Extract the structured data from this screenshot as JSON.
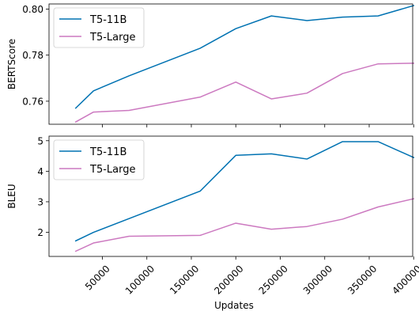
{
  "chart_data": [
    {
      "type": "line",
      "xlabel": "",
      "ylabel": "BERTScore",
      "x": [
        20000,
        40000,
        80000,
        160000,
        200000,
        240000,
        280000,
        320000,
        360000,
        400000
      ],
      "xlim": [
        0,
        400000
      ],
      "ylim": [
        0.75,
        0.8022
      ],
      "yticks": [
        0.76,
        0.78,
        0.8
      ],
      "ytick_labels": [
        "0.76",
        "0.78",
        "0.80"
      ],
      "legend_position": "top-left",
      "grid": false,
      "series": [
        {
          "name": "T5-11B",
          "color": "#0072b2",
          "values": [
            0.757,
            0.7645,
            0.771,
            0.783,
            0.7915,
            0.797,
            0.795,
            0.7965,
            0.797,
            0.8015
          ]
        },
        {
          "name": "T5-Large",
          "color": "#cc79c0",
          "values": [
            0.751,
            0.7553,
            0.756,
            0.7618,
            0.7683,
            0.761,
            0.7635,
            0.772,
            0.7762,
            0.7765
          ]
        }
      ]
    },
    {
      "type": "line",
      "xlabel": "Updates",
      "ylabel": "BLEU",
      "x": [
        20000,
        40000,
        80000,
        160000,
        200000,
        240000,
        280000,
        320000,
        360000,
        400000
      ],
      "xlim": [
        0,
        400000
      ],
      "ylim": [
        1.21,
        5.15
      ],
      "yticks": [
        2,
        3,
        4,
        5
      ],
      "ytick_labels": [
        "2",
        "3",
        "4",
        "5"
      ],
      "xticks": [
        50000,
        100000,
        150000,
        200000,
        250000,
        300000,
        350000,
        400000
      ],
      "xtick_labels": [
        "50000",
        "100000",
        "150000",
        "200000",
        "250000",
        "300000",
        "350000",
        "400000"
      ],
      "legend_position": "top-left",
      "grid": false,
      "series": [
        {
          "name": "T5-11B",
          "color": "#0072b2",
          "values": [
            1.72,
            2.0,
            2.45,
            3.35,
            4.52,
            4.57,
            4.4,
            4.97,
            4.97,
            4.45
          ]
        },
        {
          "name": "T5-Large",
          "color": "#cc79c0",
          "values": [
            1.38,
            1.65,
            1.87,
            1.9,
            2.3,
            2.1,
            2.19,
            2.43,
            2.83,
            3.1
          ]
        }
      ]
    }
  ]
}
